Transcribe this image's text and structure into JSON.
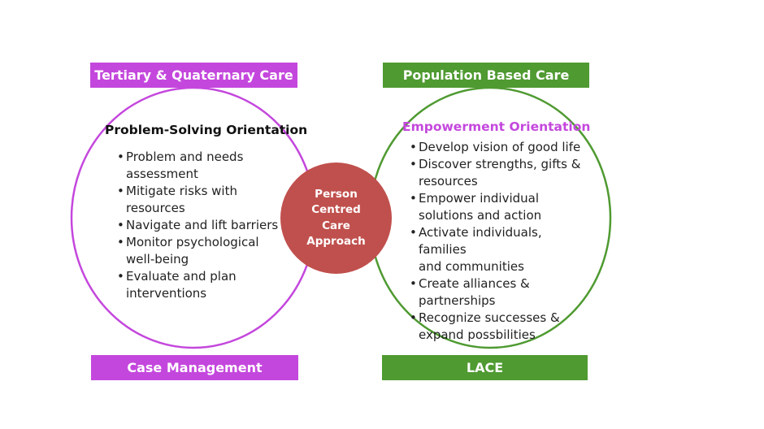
{
  "colors": {
    "purple": "#c447dd",
    "green": "#4f9a31",
    "center": "#c0504d"
  },
  "top_left_label": "Tertiary & Quaternary Care",
  "top_right_label": "Population Based Care",
  "bottom_left_label": "Case Management",
  "bottom_right_label": "LACE",
  "left_circle": {
    "heading": "Problem-Solving Orientation",
    "items": [
      [
        "Problem and needs",
        "assessment"
      ],
      [
        "Mitigate risks with",
        "resources"
      ],
      [
        "Navigate and lift barriers"
      ],
      [
        "Monitor psychological",
        "well-being"
      ],
      [
        "Evaluate and plan",
        "interventions"
      ]
    ]
  },
  "right_circle": {
    "heading": "Empowerment Orientation",
    "items": [
      [
        "Develop vision of good life"
      ],
      [
        "Discover strengths, gifts &",
        "resources"
      ],
      [
        "Empower individual",
        "solutions and action"
      ],
      [
        "Activate individuals, families",
        "and communities"
      ],
      [
        "Create alliances &",
        "partnerships"
      ],
      [
        "Recognize successes &",
        "expand possbilities"
      ]
    ]
  },
  "center": {
    "lines": [
      "Person",
      "Centred",
      "Care",
      "Approach"
    ]
  }
}
